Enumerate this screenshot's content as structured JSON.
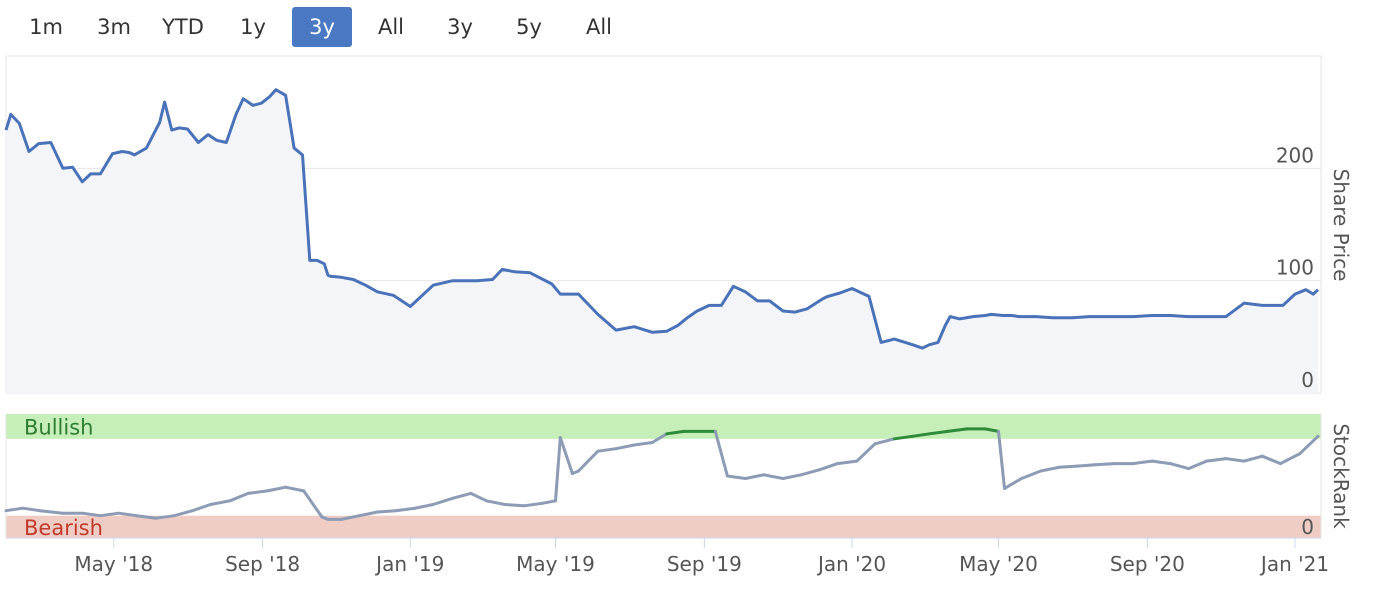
{
  "range_buttons": [
    {
      "label": "1m",
      "active": false
    },
    {
      "label": "3m",
      "active": false
    },
    {
      "label": "YTD",
      "active": false
    },
    {
      "label": "1y",
      "active": false
    },
    {
      "label": "3y",
      "active": true
    },
    {
      "label": "All",
      "active": false
    },
    {
      "label": "3y",
      "active": false
    },
    {
      "label": "5y",
      "active": false
    },
    {
      "label": "All",
      "active": false
    }
  ],
  "colors": {
    "price_line": "#4a72b8",
    "price_area": "#f4f5f9",
    "rank_neutral": "#8d9bb4",
    "rank_bullish": "#2e8b3a",
    "bullish_band": "#c6eeb8",
    "bearish_band": "#efcdc5",
    "bullish_text": "#2f7d32",
    "bearish_text": "#c0392b"
  },
  "chart_data": [
    {
      "type": "line",
      "ylabel": "Share Price",
      "ylim": [
        0,
        300
      ],
      "yticks": [
        0,
        100,
        200
      ],
      "xlim": [
        "2018-02-01",
        "2021-01-20"
      ],
      "xtick_labels": [
        "May '18",
        "Sep '18",
        "Jan '19",
        "May '19",
        "Sep '19",
        "Jan '20",
        "May '20",
        "Sep '20",
        "Jan '21"
      ],
      "xtick_dates": [
        "2018-05-01",
        "2018-09-01",
        "2019-01-01",
        "2019-05-01",
        "2019-09-01",
        "2020-01-01",
        "2020-05-01",
        "2020-09-01",
        "2021-01-01"
      ],
      "grid": true,
      "series": [
        {
          "x": [
            "2018-02-01",
            "2018-02-05",
            "2018-02-12",
            "2018-02-20",
            "2018-02-28",
            "2018-03-10",
            "2018-03-20",
            "2018-03-28",
            "2018-04-05",
            "2018-04-12",
            "2018-04-20",
            "2018-04-30",
            "2018-05-08",
            "2018-05-14",
            "2018-05-18",
            "2018-05-28",
            "2018-06-08",
            "2018-06-12",
            "2018-06-18",
            "2018-06-24",
            "2018-07-01",
            "2018-07-10",
            "2018-07-18",
            "2018-07-25",
            "2018-08-02",
            "2018-08-10",
            "2018-08-16",
            "2018-08-24",
            "2018-08-31",
            "2018-09-07",
            "2018-09-12",
            "2018-09-20",
            "2018-09-27",
            "2018-10-04",
            "2018-10-10",
            "2018-10-16",
            "2018-10-22",
            "2018-10-25",
            "2018-10-27",
            "2018-11-05",
            "2018-11-15",
            "2018-11-25",
            "2018-12-05",
            "2018-12-18",
            "2019-01-01",
            "2019-01-20",
            "2019-02-05",
            "2019-02-25",
            "2019-03-10",
            "2019-03-18",
            "2019-03-28",
            "2019-04-10",
            "2019-04-28",
            "2019-05-05",
            "2019-05-20",
            "2019-06-05",
            "2019-06-20",
            "2019-07-05",
            "2019-07-20",
            "2019-08-01",
            "2019-08-10",
            "2019-08-18",
            "2019-08-26",
            "2019-09-05",
            "2019-09-15",
            "2019-09-25",
            "2019-10-05",
            "2019-10-15",
            "2019-10-25",
            "2019-11-05",
            "2019-11-15",
            "2019-11-25",
            "2019-12-08",
            "2019-12-12",
            "2019-12-22",
            "2020-01-01",
            "2020-01-15",
            "2020-01-25",
            "2020-02-05",
            "2020-02-20",
            "2020-02-28",
            "2020-03-05",
            "2020-03-12",
            "2020-03-18",
            "2020-03-22",
            "2020-03-30",
            "2020-04-10",
            "2020-04-20",
            "2020-04-25",
            "2020-05-05",
            "2020-05-12",
            "2020-05-18",
            "2020-06-01",
            "2020-06-15",
            "2020-07-01",
            "2020-07-15",
            "2020-08-01",
            "2020-08-20",
            "2020-09-05",
            "2020-09-20",
            "2020-10-05",
            "2020-10-20",
            "2020-11-05",
            "2020-11-20",
            "2020-12-05",
            "2020-12-15",
            "2020-12-22",
            "2021-01-01",
            "2021-01-10",
            "2021-01-16",
            "2021-01-20"
          ],
          "values": [
            234,
            248,
            240,
            215,
            222,
            223,
            200,
            201,
            188,
            195,
            195,
            213,
            215,
            214,
            212,
            218,
            241,
            259,
            234,
            236,
            235,
            223,
            230,
            225,
            223,
            248,
            262,
            256,
            258,
            264,
            270,
            265,
            218,
            212,
            118,
            118,
            115,
            105,
            104,
            103,
            101,
            96,
            90,
            87,
            77,
            96,
            100,
            100,
            101,
            110,
            108,
            107,
            97,
            88,
            88,
            70,
            56,
            59,
            54,
            55,
            60,
            67,
            73,
            78,
            78,
            95,
            90,
            82,
            82,
            73,
            72,
            75,
            84,
            86,
            89,
            93,
            86,
            45,
            48,
            43,
            40,
            43,
            45,
            60,
            68,
            66,
            68,
            69,
            70,
            69,
            69,
            68,
            68,
            67,
            67,
            68,
            68,
            68,
            69,
            69,
            68,
            68,
            68,
            80,
            78,
            78,
            78,
            88,
            92,
            88,
            92
          ]
        }
      ]
    },
    {
      "type": "line",
      "ylabel": "StockRank",
      "yticks": [
        0
      ],
      "ylim": [
        0,
        100
      ],
      "bands": [
        {
          "label": "Bullish",
          "from": 80,
          "to": 100
        },
        {
          "label": "Bearish",
          "from": 0,
          "to": 18
        }
      ],
      "bullish_threshold": 80,
      "series": [
        {
          "x": [
            "2018-02-01",
            "2018-02-15",
            "2018-03-01",
            "2018-03-20",
            "2018-04-05",
            "2018-04-20",
            "2018-05-05",
            "2018-05-20",
            "2018-06-05",
            "2018-06-20",
            "2018-07-05",
            "2018-07-20",
            "2018-08-05",
            "2018-08-20",
            "2018-09-05",
            "2018-09-20",
            "2018-10-05",
            "2018-10-20",
            "2018-10-25",
            "2018-11-05",
            "2018-11-20",
            "2018-12-05",
            "2018-12-20",
            "2019-01-05",
            "2019-01-20",
            "2019-02-05",
            "2019-02-20",
            "2019-03-05",
            "2019-03-20",
            "2019-04-05",
            "2019-04-20",
            "2019-05-01",
            "2019-05-05",
            "2019-05-15",
            "2019-05-20",
            "2019-06-05",
            "2019-06-20",
            "2019-07-05",
            "2019-07-20",
            "2019-08-01",
            "2019-08-15",
            "2019-08-25",
            "2019-09-10",
            "2019-09-20",
            "2019-10-05",
            "2019-10-20",
            "2019-11-05",
            "2019-11-20",
            "2019-12-05",
            "2019-12-20",
            "2020-01-05",
            "2020-01-20",
            "2020-02-05",
            "2020-02-20",
            "2020-03-05",
            "2020-03-20",
            "2020-04-05",
            "2020-04-20",
            "2020-05-01",
            "2020-05-06",
            "2020-05-20",
            "2020-06-05",
            "2020-06-20",
            "2020-07-05",
            "2020-07-20",
            "2020-08-05",
            "2020-08-20",
            "2020-09-05",
            "2020-09-20",
            "2020-10-05",
            "2020-10-20",
            "2020-11-05",
            "2020-11-20",
            "2020-12-05",
            "2020-12-20",
            "2021-01-05",
            "2021-01-20"
          ],
          "values": [
            22,
            24,
            22,
            20,
            20,
            18,
            20,
            18,
            16,
            18,
            22,
            27,
            30,
            36,
            38,
            41,
            38,
            17,
            15,
            15,
            18,
            21,
            22,
            24,
            27,
            32,
            36,
            30,
            27,
            26,
            28,
            30,
            81,
            52,
            54,
            70,
            72,
            75,
            77,
            84,
            86,
            86,
            86,
            50,
            48,
            51,
            48,
            51,
            55,
            60,
            62,
            76,
            80,
            82,
            84,
            86,
            88,
            88,
            86,
            40,
            48,
            54,
            57,
            58,
            59,
            60,
            60,
            62,
            60,
            56,
            62,
            64,
            62,
            66,
            60,
            68,
            82
          ]
        }
      ]
    }
  ]
}
